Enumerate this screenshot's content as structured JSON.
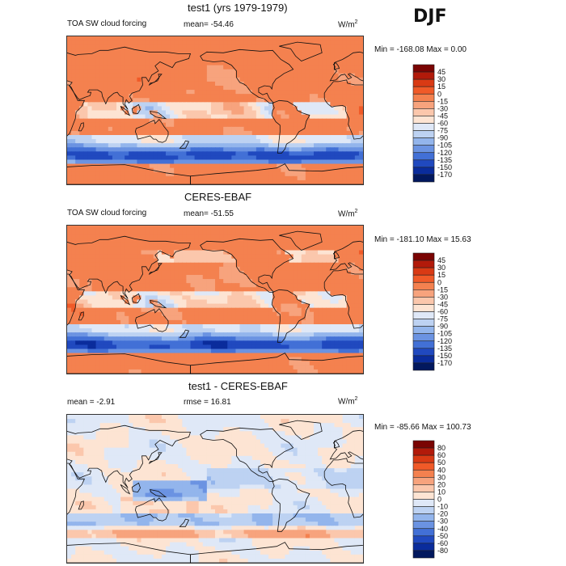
{
  "season": "DJF",
  "chart_data": [
    {
      "type": "heatmap",
      "title": "test1 (yrs 1979-1979)",
      "variable": "TOA SW cloud forcing",
      "stat_text": "mean=  -54.46",
      "units": "W/m",
      "units_sup": "2",
      "range_text": "Min = -168.08  Max =    0.00",
      "min": -168.08,
      "max": 0.0,
      "mean": -54.46,
      "levels": [
        "45",
        "30",
        "15",
        "0",
        "-15",
        "-30",
        "-45",
        "-60",
        "-75",
        "-90",
        "-105",
        "-120",
        "-135",
        "-150",
        "-170"
      ],
      "colors": [
        "#7a0403",
        "#b21a0a",
        "#d93a14",
        "#f05a28",
        "#f4814f",
        "#f7a37d",
        "#fbc7ac",
        "#fde4d3",
        "#dfe8f7",
        "#bdd2f2",
        "#93b5ec",
        "#6b93e2",
        "#4270d6",
        "#2049bf",
        "#0a2c9c",
        "#02185e"
      ]
    },
    {
      "type": "heatmap",
      "title": "CERES-EBAF",
      "variable": "TOA SW cloud forcing",
      "stat_text": "mean=  -51.55",
      "units": "W/m",
      "units_sup": "2",
      "range_text": "Min = -181.10  Max =   15.63",
      "min": -181.1,
      "max": 15.63,
      "mean": -51.55,
      "levels": [
        "45",
        "30",
        "15",
        "0",
        "-15",
        "-30",
        "-45",
        "-60",
        "-75",
        "-90",
        "-105",
        "-120",
        "-135",
        "-150",
        "-170"
      ],
      "colors": [
        "#7a0403",
        "#b21a0a",
        "#d93a14",
        "#f05a28",
        "#f4814f",
        "#f7a37d",
        "#fbc7ac",
        "#fde4d3",
        "#dfe8f7",
        "#bdd2f2",
        "#93b5ec",
        "#6b93e2",
        "#4270d6",
        "#2049bf",
        "#0a2c9c",
        "#02185e"
      ]
    },
    {
      "type": "heatmap",
      "title": "test1 - CERES-EBAF",
      "stat_text": "mean =   -2.91",
      "rmse_text": "rmse =   16.81",
      "units": "W/m",
      "units_sup": "2",
      "range_text": "Min = -85.66  Max = 100.73",
      "min": -85.66,
      "max": 100.73,
      "mean": -2.91,
      "rmse": 16.81,
      "levels": [
        "80",
        "60",
        "50",
        "40",
        "30",
        "20",
        "10",
        "0",
        "-10",
        "-20",
        "-30",
        "-40",
        "-50",
        "-60",
        "-80"
      ],
      "colors": [
        "#7a0403",
        "#b21a0a",
        "#d93a14",
        "#f05a28",
        "#f4814f",
        "#f7a37d",
        "#fbc7ac",
        "#fde4d3",
        "#dfe8f7",
        "#bdd2f2",
        "#93b5ec",
        "#6b93e2",
        "#4270d6",
        "#2049bf",
        "#0a2c9c",
        "#02185e"
      ]
    }
  ]
}
